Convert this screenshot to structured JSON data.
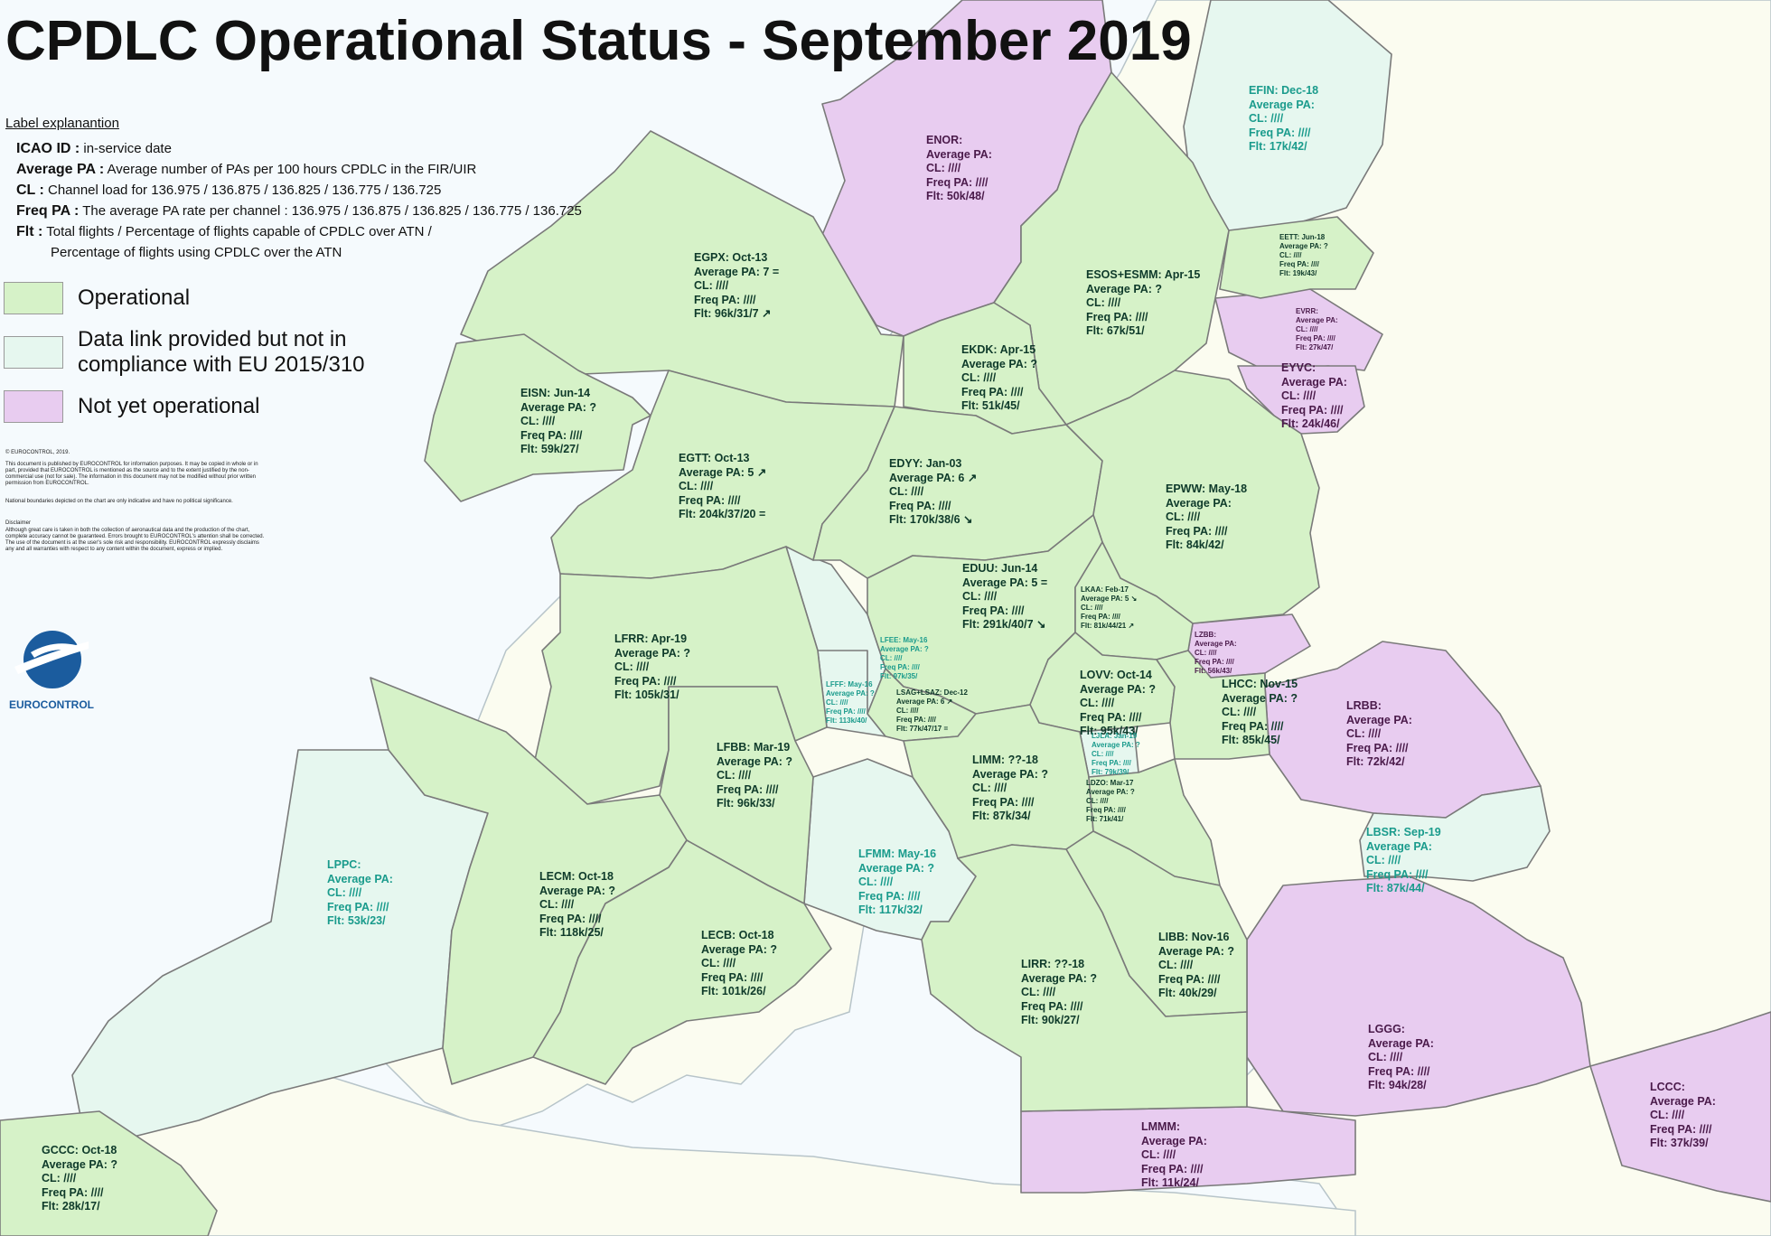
{
  "title": "CPDLC Operational Status - September 2019",
  "legend": {
    "heading": "Label explanantion",
    "lines": [
      {
        "key": "ICAO ID :",
        "text": " in-service date"
      },
      {
        "key": "Average PA :",
        "text": " Average number of PAs per 100 hours CPDLC in the FIR/UIR"
      },
      {
        "key": "CL :",
        "text": " Channel load for 136.975 / 136.875 / 136.825 / 136.775 / 136.725"
      },
      {
        "key": "Freq PA :",
        "text": " The average PA rate per channel : 136.975 / 136.875 / 136.825 / 136.775 / 136.725"
      },
      {
        "key": "Flt :",
        "text": " Total flights / Percentage of flights capable of CPDLC over ATN /"
      },
      {
        "key": "",
        "text": "Percentage of flights using CPDLC over the ATN"
      }
    ],
    "categories": [
      {
        "label": "Operational",
        "color": "#d6f2c8"
      },
      {
        "label": "Data link provided but not in compliance with EU 2015/310",
        "color": "#e6f7ef"
      },
      {
        "label": "Not yet operational",
        "color": "#e8ccf0"
      }
    ]
  },
  "fine_print": {
    "copyright": "© EUROCONTROL, 2019.",
    "p1": "This document is published by EUROCONTROL for information purposes. It may be copied in whole or in part, provided that EUROCONTROL is mentioned as the source and to the extent justified by the non-commercial use (not for sale). The information in this document may not be modified without prior written permission from EUROCONTROL.",
    "p2": "National boundaries depicted on the chart are only indicative and have no political significance.",
    "p3_title": "Disclaimer",
    "p3": "Although great care is taken in both the collection of aeronautical data and the production of the chart, complete accuracy cannot be guaranteed. Errors brought to EUROCONTROL's attention shall be corrected. The use of the document is at the user's sole risk and responsibility. EUROCONTROL expressly disclaims any and all warranties with respect to any content within the document, express or implied."
  },
  "logo": {
    "text": "EUROCONTROL"
  },
  "colors": {
    "operational": "#d6f2c8",
    "datalink": "#e6f7ef",
    "not_operational": "#e8ccf0",
    "land": "#fbfcf0",
    "sea": "#f5fafd",
    "border": "#6f6f6f"
  },
  "regions": [
    {
      "id": "ENOR",
      "status": "no",
      "lines": [
        "ENOR:",
        "Average PA:",
        "CL: ////",
        "Freq PA: ////",
        "Flt: 50k/48/"
      ]
    },
    {
      "id": "EFIN",
      "status": "dl",
      "lines": [
        "EFIN: Dec-18",
        "Average PA:",
        "CL: ////",
        "Freq PA: ////",
        "Flt: 17k/42/"
      ]
    },
    {
      "id": "EETT",
      "status": "op",
      "small": true,
      "lines": [
        "EETT: Jun-18",
        "Average PA: ?",
        "CL: ////",
        "Freq PA: ////",
        "Flt: 19k/43/"
      ]
    },
    {
      "id": "EVRR",
      "status": "no",
      "small": true,
      "lines": [
        "EVRR:",
        "Average PA:",
        "CL: ////",
        "Freq PA: ////",
        "Flt: 27k/47/"
      ]
    },
    {
      "id": "EYVC",
      "status": "no",
      "lines": [
        "EYVC:",
        "Average PA:",
        "CL: ////",
        "Freq PA: ////",
        "Flt: 24k/46/"
      ]
    },
    {
      "id": "ESOS",
      "status": "op",
      "lines": [
        "ESOS+ESMM: Apr-15",
        "Average PA: ?",
        "CL: ////",
        "Freq PA: ////",
        "Flt: 67k/51/"
      ]
    },
    {
      "id": "EGPX",
      "status": "op",
      "lines": [
        "EGPX: Oct-13",
        "Average PA: 7 =",
        "CL: ////",
        "Freq PA: ////",
        "Flt: 96k/31/7 ↗"
      ]
    },
    {
      "id": "EISN",
      "status": "op",
      "lines": [
        "EISN: Jun-14",
        "Average PA: ?",
        "CL: ////",
        "Freq PA: ////",
        "Flt: 59k/27/"
      ]
    },
    {
      "id": "EKDK",
      "status": "op",
      "lines": [
        "EKDK: Apr-15",
        "Average PA: ?",
        "CL: ////",
        "Freq PA: ////",
        "Flt: 51k/45/"
      ]
    },
    {
      "id": "EGTT",
      "status": "op",
      "lines": [
        "EGTT: Oct-13",
        "Average PA: 5 ↗",
        "CL: ////",
        "Freq PA: ////",
        "Flt: 204k/37/20 ="
      ]
    },
    {
      "id": "EDYY",
      "status": "op",
      "lines": [
        "EDYY: Jan-03",
        "Average PA: 6 ↗",
        "CL: ////",
        "Freq PA: ////",
        "Flt: 170k/38/6 ↘"
      ]
    },
    {
      "id": "EPWW",
      "status": "op",
      "lines": [
        "EPWW: May-18",
        "Average PA:",
        "CL: ////",
        "Freq PA: ////",
        "Flt: 84k/42/"
      ]
    },
    {
      "id": "EDUU",
      "status": "op",
      "lines": [
        "EDUU: Jun-14",
        "Average PA: 5 =",
        "CL: ////",
        "Freq PA: ////",
        "Flt: 291k/40/7 ↘"
      ]
    },
    {
      "id": "LKAA",
      "status": "op",
      "small": true,
      "lines": [
        "LKAA: Feb-17",
        "Average PA: 5 ↘",
        "CL: ////",
        "Freq PA: ////",
        "Flt: 81k/44/21 ↗"
      ]
    },
    {
      "id": "LZBB",
      "status": "no",
      "small": true,
      "lines": [
        "LZBB:",
        "Average PA:",
        "CL: ////",
        "Freq PA: ////",
        "Flt: 56k/43/"
      ]
    },
    {
      "id": "LFRR",
      "status": "op",
      "lines": [
        "LFRR: Apr-19",
        "Average PA: ?",
        "CL: ////",
        "Freq PA: ////",
        "Flt: 105k/31/"
      ]
    },
    {
      "id": "LFEE",
      "status": "dl",
      "small": true,
      "lines": [
        "LFEE: May-16",
        "Average PA: ?",
        "CL: ////",
        "Freq PA: ////",
        "Flt: 97k/35/"
      ]
    },
    {
      "id": "LFFF",
      "status": "dl",
      "small": true,
      "lines": [
        "LFFF: May-16",
        "Average PA: ?",
        "CL: ////",
        "Freq PA: ////",
        "Flt: 113k/40/"
      ]
    },
    {
      "id": "LSAG",
      "status": "op",
      "small": true,
      "lines": [
        "LSAG+LSAZ: Dec-12",
        "Average PA: 6 ↗",
        "CL: ////",
        "Freq PA: ////",
        "Flt: 77k/47/17 ="
      ]
    },
    {
      "id": "LOVV",
      "status": "op",
      "lines": [
        "LOVV: Oct-14",
        "Average PA: ?",
        "CL: ////",
        "Freq PA: ////",
        "Flt: 95k/43/"
      ]
    },
    {
      "id": "LHCC",
      "status": "op",
      "small": false,
      "lines": [
        "LHCC: Nov-15",
        "Average PA: ?",
        "CL: ////",
        "Freq PA: ////",
        "Flt: 85k/45/"
      ]
    },
    {
      "id": "LRBB",
      "status": "no",
      "lines": [
        "LRBB:",
        "Average PA:",
        "CL: ////",
        "Freq PA: ////",
        "Flt: 72k/42/"
      ]
    },
    {
      "id": "LFBB",
      "status": "op",
      "lines": [
        "LFBB: Mar-19",
        "Average PA: ?",
        "CL: ////",
        "Freq PA: ////",
        "Flt: 96k/33/"
      ]
    },
    {
      "id": "LIMM",
      "status": "op",
      "lines": [
        "LIMM: ??-18",
        "Average PA: ?",
        "CL: ////",
        "Freq PA: ////",
        "Flt: 87k/34/"
      ]
    },
    {
      "id": "LJLA",
      "status": "dl",
      "small": true,
      "lines": [
        "LJLA: Jan-19",
        "Average PA: ?",
        "CL: ////",
        "Freq PA: ////",
        "Flt: 79k/39/"
      ]
    },
    {
      "id": "LDZO",
      "status": "op",
      "small": true,
      "lines": [
        "LDZO: Mar-17",
        "Average PA: ?",
        "CL: ////",
        "Freq PA: ////",
        "Flt: 71k/41/"
      ]
    },
    {
      "id": "LPPC",
      "status": "dl",
      "lines": [
        "LPPC:",
        "Average PA:",
        "CL: ////",
        "Freq PA: ////",
        "Flt: 53k/23/"
      ]
    },
    {
      "id": "LECM",
      "status": "op",
      "lines": [
        "LECM: Oct-18",
        "Average PA: ?",
        "CL: ////",
        "Freq PA: ////",
        "Flt: 118k/25/"
      ]
    },
    {
      "id": "LFMM",
      "status": "dl",
      "lines": [
        "LFMM: May-16",
        "Average PA: ?",
        "CL: ////",
        "Freq PA: ////",
        "Flt: 117k/32/"
      ]
    },
    {
      "id": "LBSR",
      "status": "dl",
      "lines": [
        "LBSR: Sep-19",
        "Average PA:",
        "CL: ////",
        "Freq PA: ////",
        "Flt: 87k/44/"
      ]
    },
    {
      "id": "LECB",
      "status": "op",
      "lines": [
        "LECB: Oct-18",
        "Average PA: ?",
        "CL: ////",
        "Freq PA: ////",
        "Flt: 101k/26/"
      ]
    },
    {
      "id": "LIBB",
      "status": "op",
      "lines": [
        "LIBB: Nov-16",
        "Average PA: ?",
        "CL: ////",
        "Freq PA: ////",
        "Flt: 40k/29/"
      ]
    },
    {
      "id": "LIRR",
      "status": "op",
      "lines": [
        "LIRR: ??-18",
        "Average PA: ?",
        "CL: ////",
        "Freq PA: ////",
        "Flt: 90k/27/"
      ]
    },
    {
      "id": "LGGG",
      "status": "no",
      "lines": [
        "LGGG:",
        "Average PA:",
        "CL: ////",
        "Freq PA: ////",
        "Flt: 94k/28/"
      ]
    },
    {
      "id": "LCCC",
      "status": "no",
      "lines": [
        "LCCC:",
        "Average PA:",
        "CL: ////",
        "Freq PA: ////",
        "Flt: 37k/39/"
      ]
    },
    {
      "id": "LMMM",
      "status": "no",
      "lines": [
        "LMMM:",
        "Average PA:",
        "CL: ////",
        "Freq PA: ////",
        "Flt: 11k/24/"
      ]
    },
    {
      "id": "GCCC",
      "status": "op",
      "lines": [
        "GCCC: Oct-18",
        "Average PA: ?",
        "CL: ////",
        "Freq PA: ////",
        "Flt: 28k/17/"
      ]
    }
  ]
}
